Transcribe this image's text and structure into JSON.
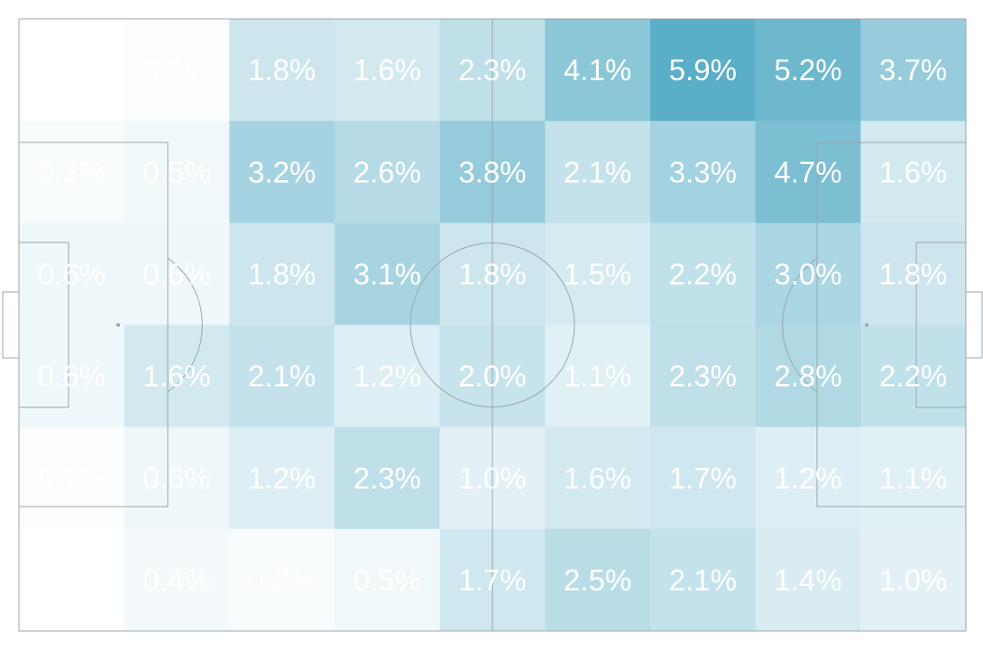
{
  "chart_data": {
    "type": "heatmap",
    "title": "",
    "xlabel": "",
    "ylabel": "",
    "colormap": {
      "low": "#ffffff",
      "high": "#5aaec7"
    },
    "value_range": [
      0,
      5.9
    ],
    "unit": "%",
    "n_cols": 9,
    "n_rows": 6,
    "values": [
      [
        0.0,
        0.1,
        1.8,
        1.6,
        2.3,
        4.1,
        5.9,
        5.2,
        3.7
      ],
      [
        0.2,
        0.5,
        3.2,
        2.6,
        3.8,
        2.1,
        3.3,
        4.7,
        1.6
      ],
      [
        0.6,
        0.6,
        1.8,
        3.1,
        1.8,
        1.5,
        2.2,
        3.0,
        1.8
      ],
      [
        0.6,
        1.6,
        2.1,
        1.2,
        2.0,
        1.1,
        2.3,
        2.8,
        2.2
      ],
      [
        0.1,
        0.6,
        1.2,
        2.3,
        1.0,
        1.6,
        1.7,
        1.2,
        1.1
      ],
      [
        0.0,
        0.4,
        0.2,
        0.5,
        1.7,
        2.5,
        2.1,
        1.4,
        1.0
      ]
    ],
    "labels": [
      [
        "",
        "0.1%",
        "1.8%",
        "1.6%",
        "2.3%",
        "4.1%",
        "5.9%",
        "5.2%",
        "3.7%"
      ],
      [
        "0.2%",
        "0.5%",
        "3.2%",
        "2.6%",
        "3.8%",
        "2.1%",
        "3.3%",
        "4.7%",
        "1.6%"
      ],
      [
        "0.6%",
        "0.6%",
        "1.8%",
        "3.1%",
        "1.8%",
        "1.5%",
        "2.2%",
        "3.0%",
        "1.8%"
      ],
      [
        "0.6%",
        "1.6%",
        "2.1%",
        "1.2%",
        "2.0%",
        "1.1%",
        "2.3%",
        "2.8%",
        "2.2%"
      ],
      [
        "0.1%",
        "0.6%",
        "1.2%",
        "2.3%",
        "1.0%",
        "1.6%",
        "1.7%",
        "1.2%",
        "1.1%"
      ],
      [
        "",
        "0.4%",
        "0.2%",
        "0.5%",
        "1.7%",
        "2.5%",
        "2.1%",
        "1.4%",
        "1.0%"
      ]
    ],
    "background": "football-pitch",
    "grid": false,
    "legend": "none"
  },
  "colors": {
    "cell_high": "#5aaec7",
    "label_text": "#ffffff",
    "pitch_lines": "#9aa6ab"
  }
}
